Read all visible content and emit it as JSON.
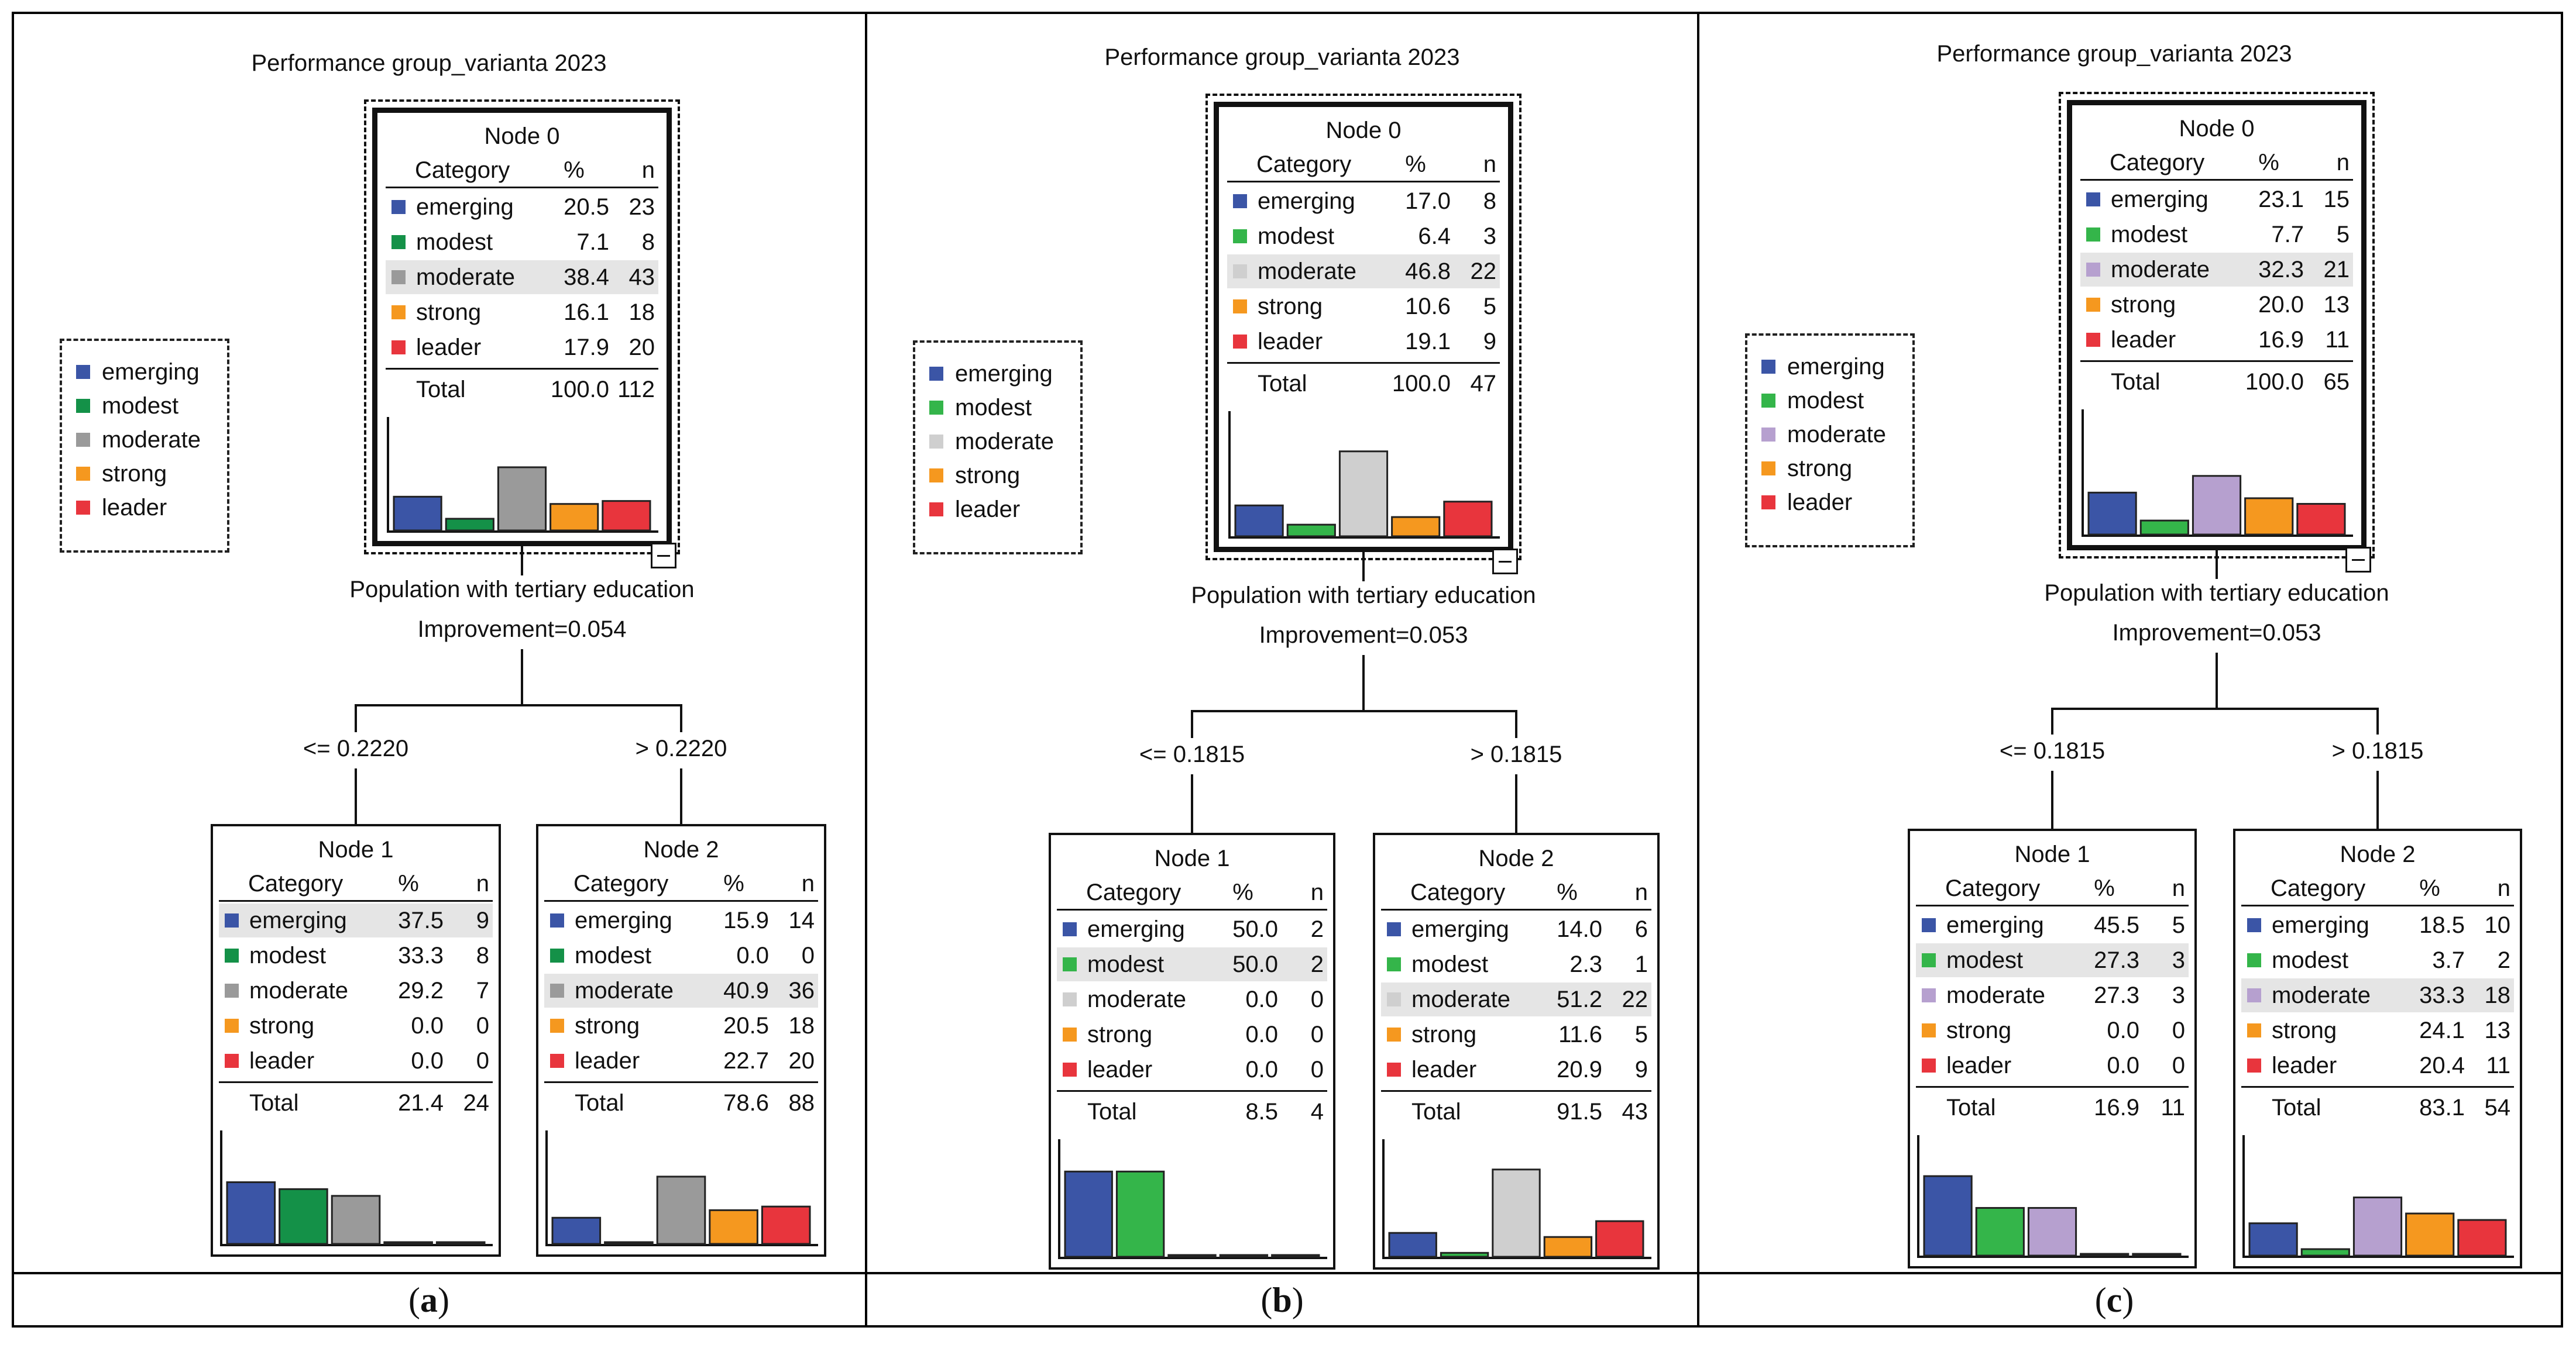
{
  "colors": {
    "emerging": "#3b55a6",
    "modest_a": "#149148",
    "moderate_a": "#9a9a9a",
    "modest_bc": "#34b54a",
    "moderate_b": "#cfcfcf",
    "moderate_c": "#b6a0cf",
    "strong": "#f5981f",
    "leader": "#e8353d"
  },
  "panels": [
    {
      "caption_letter": "a",
      "caption_open": "(",
      "caption_close": ")",
      "title": "Performance group_varianta 2023",
      "legend": [
        "emerging",
        "modest",
        "moderate",
        "strong",
        "leader"
      ],
      "palette": [
        "emerging",
        "modest_a",
        "moderate_a",
        "strong",
        "leader"
      ],
      "split_variable": "Population with tertiary education",
      "improvement": "Improvement=0.054",
      "left_branch": "<= 0.2220",
      "right_branch": "> 0.2220",
      "header": {
        "category": "Category",
        "pct": "%",
        "n": "n"
      },
      "total_label": "Total",
      "nodes": [
        {
          "title": "Node 0",
          "highlight": 2,
          "rows": [
            [
              "emerging",
              "20.5",
              "23"
            ],
            [
              "modest",
              "7.1",
              "8"
            ],
            [
              "moderate",
              "38.4",
              "43"
            ],
            [
              "strong",
              "16.1",
              "18"
            ],
            [
              "leader",
              "17.9",
              "20"
            ]
          ],
          "total_pct": "100.0",
          "total_n": "112",
          "bars": [
            20.5,
            7.1,
            38.4,
            16.1,
            17.9
          ]
        },
        {
          "title": "Node 1",
          "highlight": 0,
          "rows": [
            [
              "emerging",
              "37.5",
              "9"
            ],
            [
              "modest",
              "33.3",
              "8"
            ],
            [
              "moderate",
              "29.2",
              "7"
            ],
            [
              "strong",
              "0.0",
              "0"
            ],
            [
              "leader",
              "0.0",
              "0"
            ]
          ],
          "total_pct": "21.4",
          "total_n": "24",
          "bars": [
            37.5,
            33.3,
            29.2,
            0,
            0
          ]
        },
        {
          "title": "Node 2",
          "highlight": 2,
          "rows": [
            [
              "emerging",
              "15.9",
              "14"
            ],
            [
              "modest",
              "0.0",
              "0"
            ],
            [
              "moderate",
              "40.9",
              "36"
            ],
            [
              "strong",
              "20.5",
              "18"
            ],
            [
              "leader",
              "22.7",
              "20"
            ]
          ],
          "total_pct": "78.6",
          "total_n": "88",
          "bars": [
            15.9,
            0,
            40.9,
            20.5,
            22.7
          ]
        }
      ]
    },
    {
      "caption_letter": "b",
      "caption_open": "(",
      "caption_close": ")",
      "title": "Performance group_varianta 2023",
      "legend": [
        "emerging",
        "modest",
        "moderate",
        "strong",
        "leader"
      ],
      "palette": [
        "emerging",
        "modest_bc",
        "moderate_b",
        "strong",
        "leader"
      ],
      "split_variable": "Population with tertiary education",
      "improvement": "Improvement=0.053",
      "left_branch": "<= 0.1815",
      "right_branch": "> 0.1815",
      "header": {
        "category": "Category",
        "pct": "%",
        "n": "n"
      },
      "total_label": "Total",
      "nodes": [
        {
          "title": "Node 0",
          "highlight": 2,
          "rows": [
            [
              "emerging",
              "17.0",
              "8"
            ],
            [
              "modest",
              "6.4",
              "3"
            ],
            [
              "moderate",
              "46.8",
              "22"
            ],
            [
              "strong",
              "10.6",
              "5"
            ],
            [
              "leader",
              "19.1",
              "9"
            ]
          ],
          "total_pct": "100.0",
          "total_n": "47",
          "bars": [
            17.0,
            6.4,
            46.8,
            10.6,
            19.1
          ]
        },
        {
          "title": "Node 1",
          "highlight": 1,
          "rows": [
            [
              "emerging",
              "50.0",
              "2"
            ],
            [
              "modest",
              "50.0",
              "2"
            ],
            [
              "moderate",
              "0.0",
              "0"
            ],
            [
              "strong",
              "0.0",
              "0"
            ],
            [
              "leader",
              "0.0",
              "0"
            ]
          ],
          "total_pct": "8.5",
          "total_n": "4",
          "bars": [
            50.0,
            50.0,
            0,
            0,
            0
          ]
        },
        {
          "title": "Node 2",
          "highlight": 2,
          "rows": [
            [
              "emerging",
              "14.0",
              "6"
            ],
            [
              "modest",
              "2.3",
              "1"
            ],
            [
              "moderate",
              "51.2",
              "22"
            ],
            [
              "strong",
              "11.6",
              "5"
            ],
            [
              "leader",
              "20.9",
              "9"
            ]
          ],
          "total_pct": "91.5",
          "total_n": "43",
          "bars": [
            14.0,
            2.3,
            51.2,
            11.6,
            20.9
          ]
        }
      ]
    },
    {
      "caption_letter": "c",
      "caption_open": "(",
      "caption_close": ")",
      "title": "Performance group_varianta 2023",
      "legend": [
        "emerging",
        "modest",
        "moderate",
        "strong",
        "leader"
      ],
      "palette": [
        "emerging",
        "modest_bc",
        "moderate_c",
        "strong",
        "leader"
      ],
      "split_variable": "Population with tertiary education",
      "improvement": "Improvement=0.053",
      "left_branch": "<= 0.1815",
      "right_branch": "> 0.1815",
      "header": {
        "category": "Category",
        "pct": "%",
        "n": "n"
      },
      "total_label": "Total",
      "nodes": [
        {
          "title": "Node 0",
          "highlight": 2,
          "rows": [
            [
              "emerging",
              "23.1",
              "15"
            ],
            [
              "modest",
              "7.7",
              "5"
            ],
            [
              "moderate",
              "32.3",
              "21"
            ],
            [
              "strong",
              "20.0",
              "13"
            ],
            [
              "leader",
              "16.9",
              "11"
            ]
          ],
          "total_pct": "100.0",
          "total_n": "65",
          "bars": [
            23.1,
            7.7,
            32.3,
            20.0,
            16.9
          ]
        },
        {
          "title": "Node 1",
          "highlight": 1,
          "rows": [
            [
              "emerging",
              "45.5",
              "5"
            ],
            [
              "modest",
              "27.3",
              "3"
            ],
            [
              "moderate",
              "27.3",
              "3"
            ],
            [
              "strong",
              "0.0",
              "0"
            ],
            [
              "leader",
              "0.0",
              "0"
            ]
          ],
          "total_pct": "16.9",
          "total_n": "11",
          "bars": [
            45.5,
            27.3,
            27.3,
            0,
            0
          ]
        },
        {
          "title": "Node 2",
          "highlight": 2,
          "rows": [
            [
              "emerging",
              "18.5",
              "10"
            ],
            [
              "modest",
              "3.7",
              "2"
            ],
            [
              "moderate",
              "33.3",
              "18"
            ],
            [
              "strong",
              "24.1",
              "13"
            ],
            [
              "leader",
              "20.4",
              "11"
            ]
          ],
          "total_pct": "83.1",
          "total_n": "54",
          "bars": [
            18.5,
            3.7,
            33.3,
            24.1,
            20.4
          ]
        }
      ]
    }
  ]
}
